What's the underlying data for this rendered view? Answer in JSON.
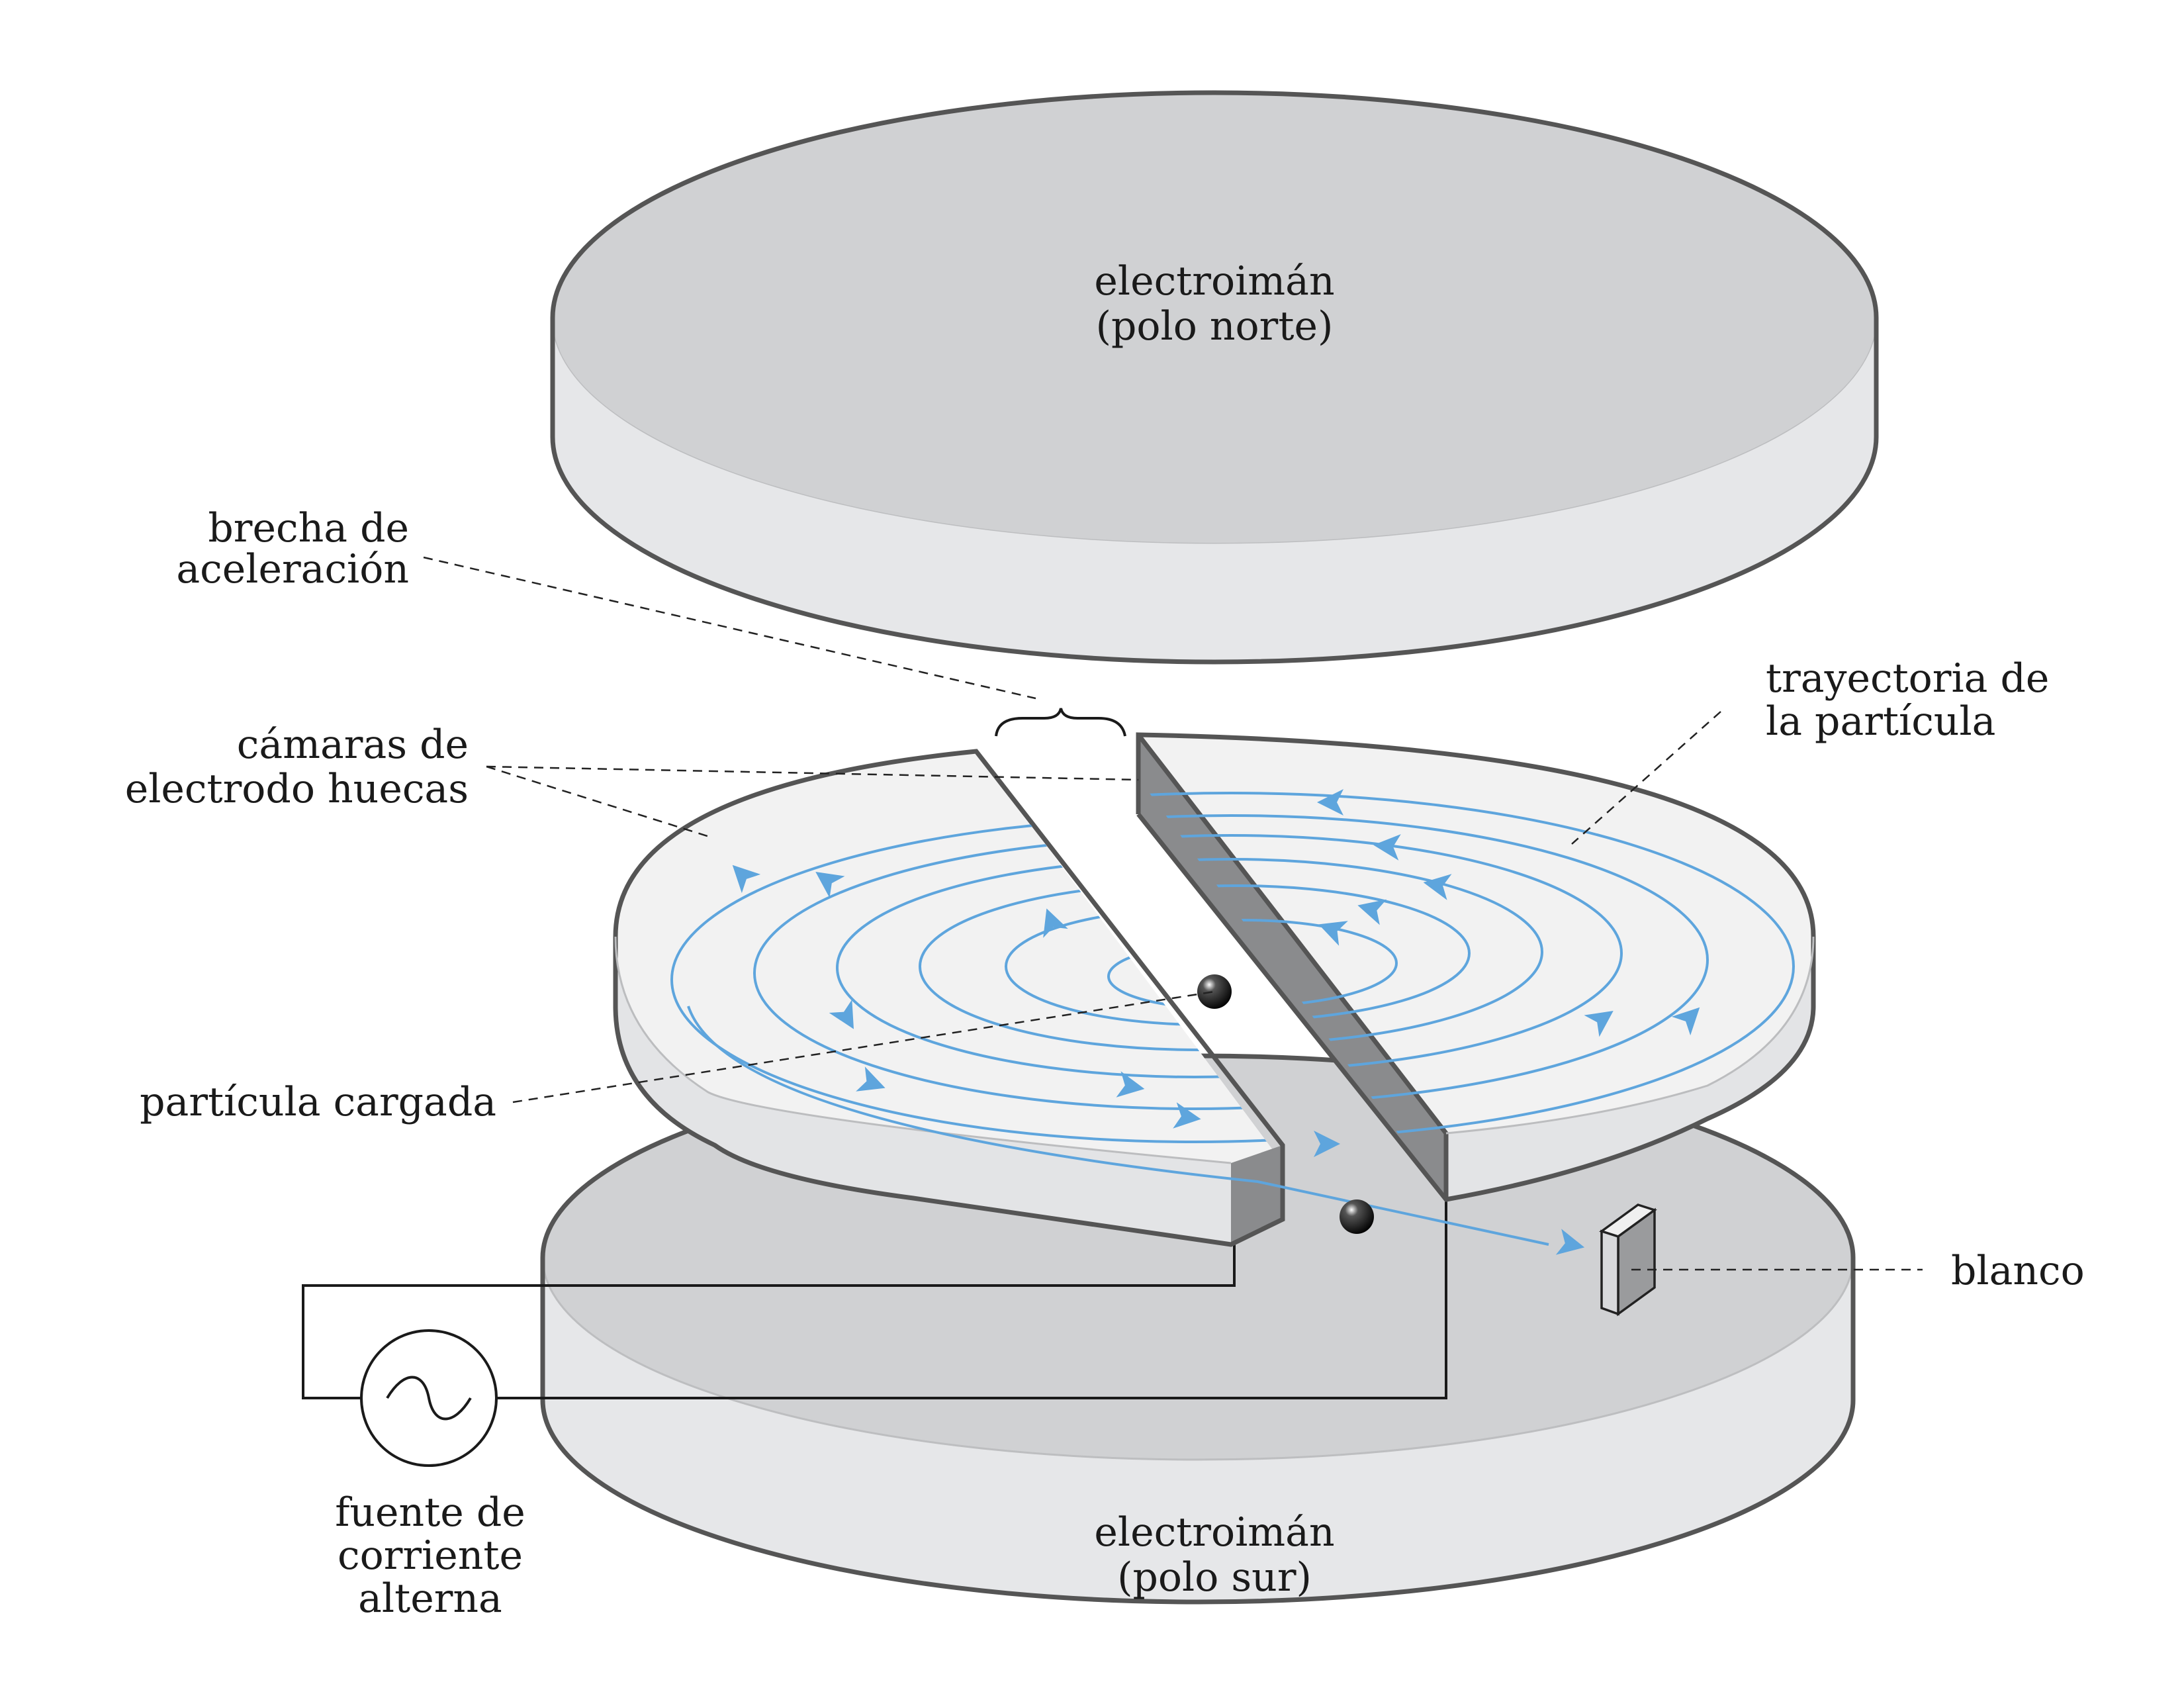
{
  "labels": {
    "north_magnet": [
      "electroimán",
      "(polo norte)"
    ],
    "south_magnet": [
      "electroimán",
      "(polo sur)"
    ],
    "acceleration_gap": [
      "brecha de",
      "aceleración"
    ],
    "hollow_electrodes": [
      "cámaras de",
      "electrodo huecas"
    ],
    "particle_path": [
      "trayectoria de",
      "la partícula"
    ],
    "charged_particle": [
      "partícula cargada"
    ],
    "target": [
      "blanco"
    ],
    "ac_source": [
      "fuente de",
      "corriente",
      "alterna"
    ]
  },
  "colors": {
    "magnet_top": "#d0d1d3",
    "magnet_side": "#e6e7e9",
    "dee_top": "#f2f2f2",
    "dee_side": "#e3e4e6",
    "gap_wall": "#8a8b8d",
    "outline": "#555555",
    "path": "#5ea5dd",
    "particle": "#111111"
  },
  "icons": {
    "ac_symbol": "sine-wave-icon",
    "particle": "particle-sphere-icon",
    "target_block": "target-plate-icon",
    "path_arrow": "path-arrowhead-icon"
  }
}
